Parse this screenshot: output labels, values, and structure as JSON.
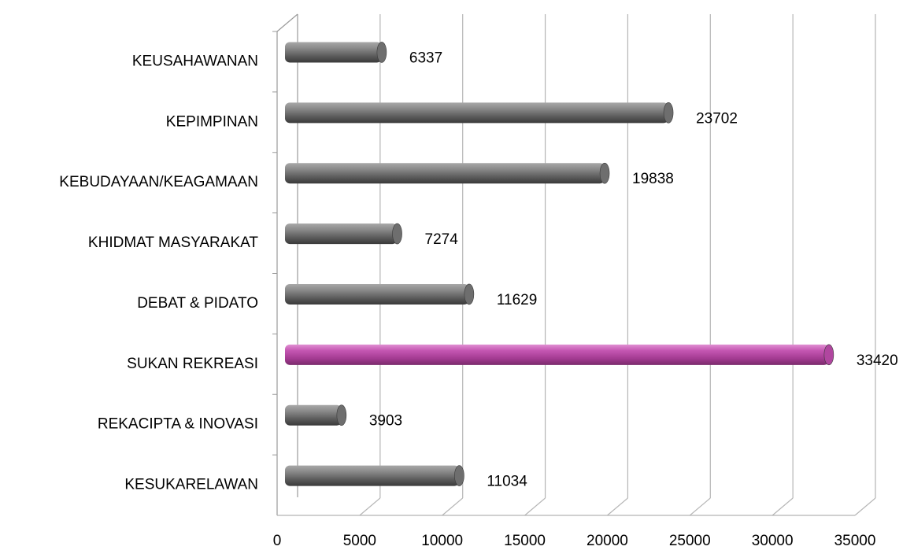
{
  "chart_data": {
    "type": "bar",
    "orientation": "horizontal",
    "categories": [
      "KEUSAHAWANAN",
      "KEPIMPINAN",
      "KEBUDAYAAN/KEAGAMAAN",
      "KHIDMAT MASYARAKAT",
      "DEBAT & PIDATO",
      "SUKAN REKREASI",
      "REKACIPTA & INOVASI",
      "KESUKARELAWAN"
    ],
    "values": [
      6337,
      23702,
      19838,
      7274,
      11629,
      33420,
      3903,
      11034
    ],
    "colors": [
      "#6e6e6e",
      "#6e6e6e",
      "#6e6e6e",
      "#6e6e6e",
      "#6e6e6e",
      "#b0469f",
      "#6e6e6e",
      "#6e6e6e"
    ],
    "xlim": [
      0,
      35000
    ],
    "xticks": [
      0,
      5000,
      10000,
      15000,
      20000,
      25000,
      30000,
      35000
    ],
    "grid": true
  }
}
